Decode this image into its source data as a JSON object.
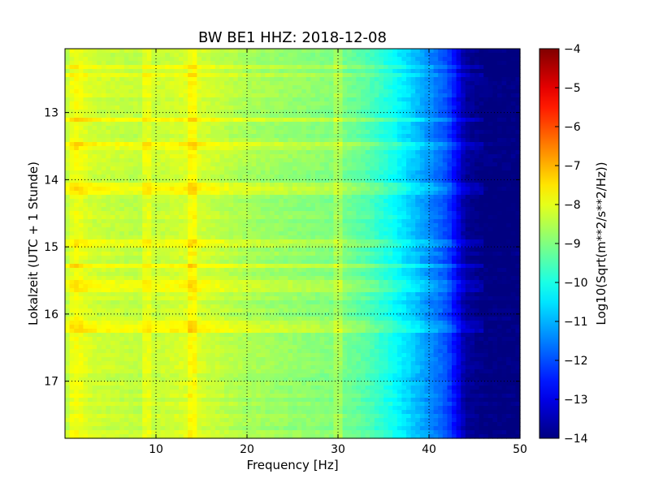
{
  "chart_data": {
    "type": "heatmap",
    "title": "BW BE1 HHZ: 2018-12-08",
    "xlabel": "Frequency [Hz]",
    "ylabel": "Lokalzeit (UTC + 1 Stunde)",
    "xlim": [
      0,
      50
    ],
    "ylim": [
      12.05,
      17.85
    ],
    "x_ticks": [
      10,
      20,
      30,
      40,
      50
    ],
    "y_ticks": [
      13,
      14,
      15,
      16,
      17
    ],
    "y_inverted": true,
    "grid": true,
    "colorbar": {
      "label": "Log10(Sqrt(m**2/s**2/Hz))",
      "range": [
        -14,
        -4
      ],
      "ticks": [
        -4,
        -5,
        -6,
        -7,
        -8,
        -9,
        -10,
        -11,
        -12,
        -13,
        -14
      ],
      "colormap": "jet"
    },
    "spectral_profile": {
      "frequency_hz": [
        0,
        1,
        3,
        8,
        14,
        20,
        25,
        30,
        33,
        36,
        39,
        42,
        43,
        44,
        46,
        50
      ],
      "log10_amplitude": [
        -8.5,
        -7.8,
        -8.2,
        -8.4,
        -8.1,
        -8.6,
        -8.8,
        -9.0,
        -9.4,
        -10.1,
        -11.0,
        -12.0,
        -12.8,
        -13.7,
        -14,
        -14
      ]
    },
    "bright_lines_hz": [
      9.0,
      13.8,
      14.3,
      30.0
    ],
    "event_rows_hour": [
      12.3,
      12.45,
      13.12,
      13.5,
      14.1,
      14.2,
      14.95,
      15.3,
      15.55,
      15.65,
      16.13,
      16.2,
      16.27
    ]
  }
}
